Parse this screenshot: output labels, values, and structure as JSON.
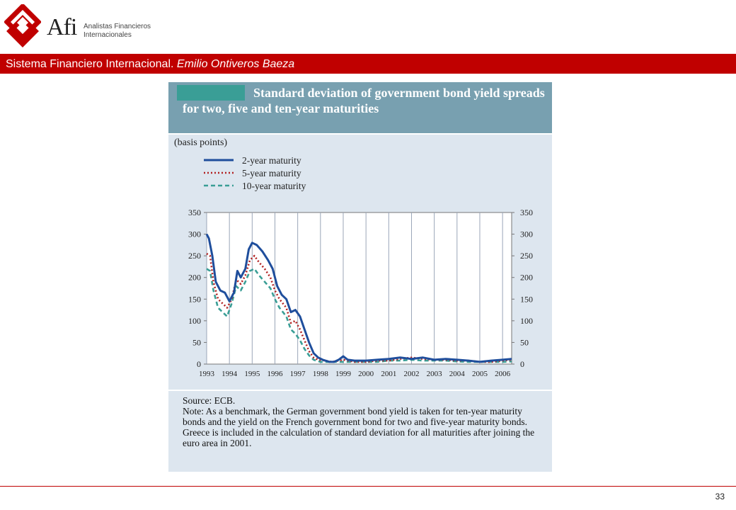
{
  "brand": {
    "name": "Afi",
    "subtitle_line1": "Analistas Financieros",
    "subtitle_line2": "Internacionales",
    "logo_color": "#c00000"
  },
  "header": {
    "title_plain": "Sistema Financiero Internacional. ",
    "title_italic": "Emilio Ontiveros Baeza",
    "bar_color": "#c00000"
  },
  "figure": {
    "title": "Standard deviation of government bond yield spreads for two, five and ten-year maturities",
    "units": "(basis points)",
    "source": "Source: ECB.",
    "note": "Note: As a benchmark, the German government bond yield is taken for ten-year maturity bonds and the yield on the French government bond for two and five-year maturity bonds. Greece is included in the calculation of standard deviation for all maturities after joining the euro area in 2001."
  },
  "chart_data": {
    "type": "line",
    "title": "Standard deviation of government bond yield spreads for two, five and ten-year maturities",
    "ylabel": "(basis points)",
    "xlim": [
      1993,
      2006.4
    ],
    "ylim": [
      0,
      350
    ],
    "x_ticks": [
      "1993",
      "1994",
      "1995",
      "1996",
      "1997",
      "1998",
      "1999",
      "2000",
      "2001",
      "2002",
      "2003",
      "2004",
      "2005",
      "2006"
    ],
    "y_ticks": [
      "0",
      "50",
      "100",
      "150",
      "200",
      "250",
      "300",
      "350"
    ],
    "grid": "vertical",
    "legend": "top-left",
    "series": [
      {
        "name": "2-year maturity",
        "color": "#1f4e9c",
        "style": "solid",
        "points": [
          [
            1993.0,
            300
          ],
          [
            1993.1,
            290
          ],
          [
            1993.25,
            250
          ],
          [
            1993.4,
            190
          ],
          [
            1993.6,
            170
          ],
          [
            1993.8,
            165
          ],
          [
            1994.0,
            145
          ],
          [
            1994.2,
            165
          ],
          [
            1994.35,
            215
          ],
          [
            1994.5,
            200
          ],
          [
            1994.7,
            220
          ],
          [
            1994.85,
            265
          ],
          [
            1995.0,
            280
          ],
          [
            1995.2,
            275
          ],
          [
            1995.45,
            260
          ],
          [
            1995.7,
            240
          ],
          [
            1995.9,
            220
          ],
          [
            1996.1,
            180
          ],
          [
            1996.3,
            160
          ],
          [
            1996.5,
            150
          ],
          [
            1996.7,
            120
          ],
          [
            1996.9,
            125
          ],
          [
            1997.1,
            110
          ],
          [
            1997.3,
            80
          ],
          [
            1997.5,
            50
          ],
          [
            1997.7,
            25
          ],
          [
            1997.9,
            15
          ],
          [
            1998.1,
            10
          ],
          [
            1998.4,
            5
          ],
          [
            1998.6,
            5
          ],
          [
            1998.8,
            10
          ],
          [
            1999.0,
            18
          ],
          [
            1999.2,
            10
          ],
          [
            1999.5,
            8
          ],
          [
            2000.0,
            8
          ],
          [
            2000.5,
            10
          ],
          [
            2001.0,
            12
          ],
          [
            2001.5,
            15
          ],
          [
            2002.0,
            12
          ],
          [
            2002.5,
            15
          ],
          [
            2003.0,
            10
          ],
          [
            2003.5,
            12
          ],
          [
            2004.0,
            10
          ],
          [
            2004.5,
            8
          ],
          [
            2005.0,
            5
          ],
          [
            2005.5,
            8
          ],
          [
            2006.0,
            10
          ],
          [
            2006.4,
            12
          ]
        ]
      },
      {
        "name": "5-year maturity",
        "color": "#b22222",
        "style": "dotted",
        "points": [
          [
            1993.0,
            255
          ],
          [
            1993.15,
            250
          ],
          [
            1993.3,
            190
          ],
          [
            1993.5,
            150
          ],
          [
            1993.7,
            140
          ],
          [
            1993.9,
            130
          ],
          [
            1994.1,
            150
          ],
          [
            1994.3,
            195
          ],
          [
            1994.5,
            185
          ],
          [
            1994.7,
            205
          ],
          [
            1994.9,
            240
          ],
          [
            1995.1,
            250
          ],
          [
            1995.3,
            235
          ],
          [
            1995.55,
            220
          ],
          [
            1995.8,
            200
          ],
          [
            1996.0,
            170
          ],
          [
            1996.2,
            150
          ],
          [
            1996.5,
            130
          ],
          [
            1996.7,
            95
          ],
          [
            1996.9,
            100
          ],
          [
            1997.1,
            80
          ],
          [
            1997.3,
            55
          ],
          [
            1997.5,
            30
          ],
          [
            1997.7,
            15
          ],
          [
            1997.9,
            10
          ],
          [
            1998.2,
            8
          ],
          [
            1998.5,
            5
          ],
          [
            1999.0,
            10
          ],
          [
            1999.5,
            5
          ],
          [
            2000.0,
            5
          ],
          [
            2000.5,
            8
          ],
          [
            2001.0,
            8
          ],
          [
            2001.5,
            12
          ],
          [
            2002.0,
            15
          ],
          [
            2002.5,
            12
          ],
          [
            2003.0,
            10
          ],
          [
            2003.5,
            10
          ],
          [
            2004.0,
            8
          ],
          [
            2004.5,
            8
          ],
          [
            2005.0,
            5
          ],
          [
            2005.5,
            5
          ],
          [
            2006.0,
            8
          ],
          [
            2006.4,
            10
          ]
        ]
      },
      {
        "name": "10-year maturity",
        "color": "#3a9e96",
        "style": "dashed",
        "points": [
          [
            1993.0,
            220
          ],
          [
            1993.15,
            215
          ],
          [
            1993.3,
            170
          ],
          [
            1993.5,
            130
          ],
          [
            1993.7,
            120
          ],
          [
            1993.9,
            110
          ],
          [
            1994.1,
            140
          ],
          [
            1994.3,
            180
          ],
          [
            1994.5,
            170
          ],
          [
            1994.7,
            190
          ],
          [
            1994.9,
            215
          ],
          [
            1995.1,
            220
          ],
          [
            1995.3,
            205
          ],
          [
            1995.55,
            190
          ],
          [
            1995.8,
            175
          ],
          [
            1996.0,
            150
          ],
          [
            1996.2,
            130
          ],
          [
            1996.5,
            110
          ],
          [
            1996.7,
            80
          ],
          [
            1996.9,
            70
          ],
          [
            1997.1,
            55
          ],
          [
            1997.3,
            35
          ],
          [
            1997.5,
            20
          ],
          [
            1997.7,
            10
          ],
          [
            1998.0,
            5
          ],
          [
            1998.5,
            5
          ],
          [
            1999.0,
            5
          ],
          [
            1999.5,
            5
          ],
          [
            2000.0,
            5
          ],
          [
            2000.5,
            5
          ],
          [
            2001.0,
            8
          ],
          [
            2001.5,
            8
          ],
          [
            2002.0,
            10
          ],
          [
            2002.5,
            8
          ],
          [
            2003.0,
            8
          ],
          [
            2003.5,
            8
          ],
          [
            2004.0,
            6
          ],
          [
            2004.5,
            5
          ],
          [
            2005.0,
            5
          ],
          [
            2005.5,
            5
          ],
          [
            2006.0,
            5
          ],
          [
            2006.4,
            6
          ]
        ]
      }
    ]
  },
  "footer": {
    "page_number": "33",
    "line_color": "#c00000"
  }
}
